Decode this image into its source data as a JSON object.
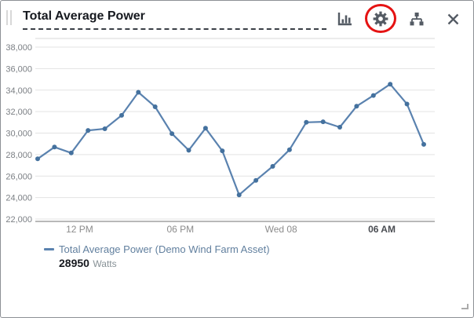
{
  "widget": {
    "title": "Total Average Power"
  },
  "toolbar": {
    "icons": [
      "bar-chart",
      "settings-gear",
      "asset-hierarchy",
      "close"
    ],
    "annotation_color": "#e51313",
    "icon_color": "#545b64"
  },
  "chart_data": {
    "type": "line",
    "title": "Total Average Power",
    "series": [
      {
        "name": "Total Average Power (Demo Wind Farm Asset)",
        "color": "#5a82af",
        "marker_color": "#44719e",
        "values": [
          27600,
          28700,
          28150,
          30250,
          30400,
          31650,
          33800,
          32450,
          29950,
          28400,
          30450,
          28350,
          24250,
          25600,
          26900,
          28450,
          31000,
          31050,
          30550,
          32500,
          33500,
          34550,
          32700,
          28950
        ]
      }
    ],
    "y_ticks": [
      22000,
      24000,
      26000,
      28000,
      30000,
      32000,
      34000,
      36000,
      38000
    ],
    "ylim": [
      21700,
      38800
    ],
    "x_ticks": [
      {
        "label": "12 PM",
        "index": 2.5,
        "bold": false
      },
      {
        "label": "06 PM",
        "index": 8.5,
        "bold": false
      },
      {
        "label": "Wed 08",
        "index": 14.5,
        "bold": false
      },
      {
        "label": "06 AM",
        "index": 20.5,
        "bold": true
      }
    ],
    "grid": true,
    "legend_position": "bottom",
    "unit": "Watts"
  },
  "legend": {
    "series_label": "Total Average Power (Demo Wind Farm Asset)",
    "latest_value": "28950",
    "unit": "Watts",
    "marker_color": "#5a82af"
  }
}
